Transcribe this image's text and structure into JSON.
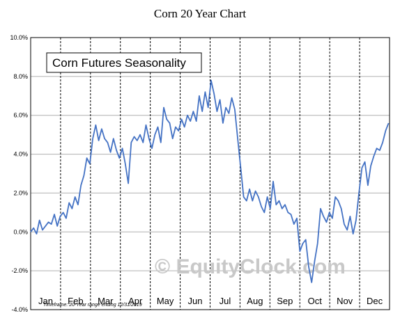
{
  "page": {
    "title": "Corn 20 Year Chart"
  },
  "chart_data": {
    "type": "line",
    "legend": "Corn Futures Seasonality",
    "watermark": "© EquityClock.com",
    "footnote": "Timeframe: 20-Year range ending 12/31/2019",
    "ylim": [
      -4.0,
      10.0
    ],
    "yticks": [
      "10.0%",
      "8.0%",
      "6.0%",
      "4.0%",
      "2.0%",
      "0.0%",
      "-2.0%",
      "-4.0%"
    ],
    "ytick_values": [
      10,
      8,
      6,
      4,
      2,
      0,
      -2,
      -4
    ],
    "months": [
      "Jan",
      "Feb",
      "Mar",
      "Apr",
      "May",
      "Jun",
      "Jul",
      "Aug",
      "Sep",
      "Oct",
      "Nov",
      "Dec"
    ],
    "line_color": "#4472c4",
    "grid": true,
    "x_unit": "day of year",
    "series": [
      {
        "x": [
          1,
          4,
          7,
          10,
          13,
          16,
          19,
          22,
          25,
          28,
          31,
          34,
          37,
          40,
          43,
          46,
          49,
          52,
          55,
          58,
          61,
          64,
          67,
          70,
          73,
          76,
          79,
          82,
          85,
          88,
          91,
          94,
          97,
          100,
          103,
          106,
          109,
          112,
          115,
          118,
          121,
          124,
          127,
          130,
          133,
          136,
          139,
          142,
          145,
          148,
          151,
          154,
          157,
          160,
          163,
          166,
          169,
          172,
          175,
          178,
          181,
          184,
          187,
          190,
          193,
          196,
          199,
          202,
          205,
          208,
          211,
          214,
          217,
          220,
          223,
          226,
          229,
          232,
          235,
          238,
          241,
          244,
          247,
          250,
          253,
          256,
          259,
          262,
          265,
          268,
          271,
          274,
          277,
          280,
          283,
          286,
          289,
          292,
          295,
          298,
          301,
          304,
          307,
          310,
          313,
          316,
          319,
          322,
          325,
          328,
          331,
          334,
          337,
          340,
          343,
          346,
          349,
          352,
          355,
          358,
          361,
          364
        ],
        "y": [
          0.0,
          0.2,
          -0.1,
          0.6,
          0.1,
          0.3,
          0.5,
          0.4,
          0.9,
          0.3,
          0.8,
          1.0,
          0.7,
          1.5,
          1.2,
          1.8,
          1.4,
          2.4,
          2.9,
          3.8,
          3.5,
          4.8,
          5.5,
          4.7,
          5.3,
          4.8,
          4.6,
          4.1,
          4.8,
          4.2,
          3.8,
          4.3,
          3.5,
          2.5,
          4.6,
          4.9,
          4.7,
          5.0,
          4.6,
          5.5,
          4.8,
          4.3,
          5.0,
          5.4,
          4.6,
          6.4,
          5.8,
          5.6,
          4.8,
          5.4,
          5.2,
          5.8,
          5.4,
          6.0,
          5.7,
          6.2,
          5.7,
          7.0,
          6.2,
          7.2,
          6.4,
          7.8,
          7.1,
          6.2,
          6.8,
          5.6,
          6.4,
          6.1,
          6.9,
          6.3,
          4.8,
          3.3,
          1.8,
          1.6,
          2.2,
          1.6,
          2.1,
          1.8,
          1.3,
          1.0,
          1.8,
          1.2,
          2.6,
          1.4,
          1.6,
          1.2,
          1.4,
          1.0,
          0.9,
          0.4,
          0.7,
          -1.0,
          -0.6,
          -0.4,
          -1.8,
          -2.6,
          -1.5,
          -0.6,
          1.2,
          0.8,
          0.5,
          1.0,
          0.7,
          1.8,
          1.6,
          1.2,
          0.4,
          0.1,
          0.8,
          -0.1,
          0.6,
          2.0,
          3.3,
          3.6,
          2.4,
          3.4,
          3.9,
          4.3,
          4.2,
          4.6,
          5.2,
          5.6
        ]
      }
    ]
  }
}
